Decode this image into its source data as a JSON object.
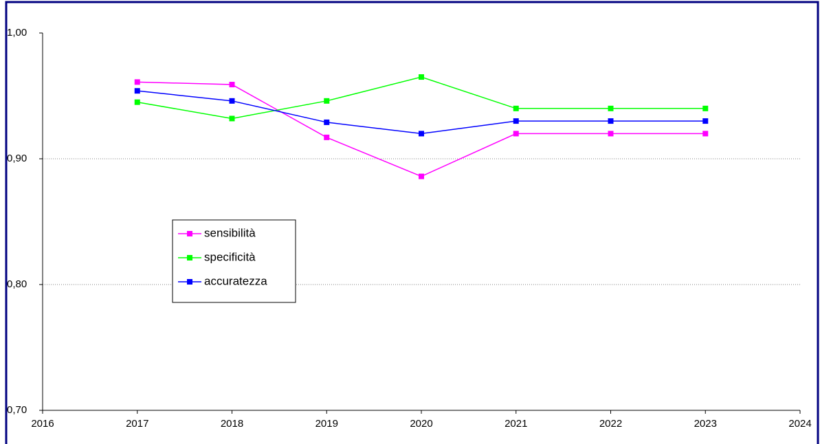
{
  "chart_data": {
    "type": "line",
    "x": [
      2017,
      2018,
      2019,
      2020,
      2021,
      2022,
      2023
    ],
    "series": [
      {
        "name": "sensibilità",
        "color": "#ff00ff",
        "values": [
          0.961,
          0.959,
          0.917,
          0.886,
          0.92,
          0.92,
          0.92
        ]
      },
      {
        "name": "specificità",
        "color": "#00ff00",
        "values": [
          0.945,
          0.932,
          0.946,
          0.965,
          0.94,
          0.94,
          0.94
        ]
      },
      {
        "name": "accuratezza",
        "color": "#0000ff",
        "values": [
          0.954,
          0.946,
          0.929,
          0.92,
          0.93,
          0.93,
          0.93
        ]
      }
    ],
    "xlim": [
      2016,
      2024
    ],
    "xticks": [
      2016,
      2017,
      2018,
      2019,
      2020,
      2021,
      2022,
      2023,
      2024
    ],
    "ylim": [
      0.7,
      1.0
    ],
    "yticks": [
      {
        "value": 0.7,
        "label": "0,70"
      },
      {
        "value": 0.8,
        "label": "0,80"
      },
      {
        "value": 0.9,
        "label": "0,90"
      },
      {
        "value": 1.0,
        "label": "1,00"
      }
    ],
    "grid": true
  }
}
